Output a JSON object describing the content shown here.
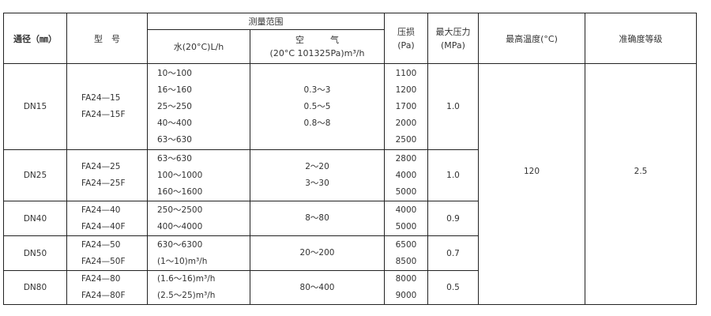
{
  "headers": {
    "diameter": "通径（㎜）",
    "model": "型　号",
    "range": "测量范围",
    "water": "水(20°C)L/h",
    "air_title": "空　　　气",
    "air_unit": "(20°C  101325Pa)m³/h",
    "pressure_loss": "压损",
    "pressure_loss_unit": "(Pa)",
    "max_pressure": "最大压力",
    "max_pressure_unit": "(MPa)",
    "max_temp": "最高温度(°C)",
    "accuracy": "准确度等级"
  },
  "rows": [
    {
      "dn": "DN15",
      "models": [
        "FA24—15",
        "FA24—15F"
      ],
      "water": [
        "10～100",
        "16～160",
        "25～250",
        "40～400",
        "63～630"
      ],
      "air": [
        "0.3～3",
        "0.5～5",
        "0.8～8"
      ],
      "loss": [
        "1100",
        "1200",
        "1700",
        "2000",
        "2500"
      ],
      "mpa": "1.0"
    },
    {
      "dn": "DN25",
      "models": [
        "FA24—25",
        "FA24—25F"
      ],
      "water": [
        "63～630",
        "100～1000",
        "160～1600"
      ],
      "air": [
        "2～20",
        "3～30"
      ],
      "loss": [
        "2800",
        "4000",
        "5000"
      ],
      "mpa": "1.0"
    },
    {
      "dn": "DN40",
      "models": [
        "FA24—40",
        "FA24—40F"
      ],
      "water": [
        "250～2500",
        "400～4000"
      ],
      "air": [
        "8～80"
      ],
      "loss": [
        "4000",
        "5000"
      ],
      "mpa": "0.9"
    },
    {
      "dn": "DN50",
      "models": [
        "FA24—50",
        "FA24—50F"
      ],
      "water": [
        "630～6300",
        "(1～10)m³/h"
      ],
      "air": [
        "20～200"
      ],
      "loss": [
        "6500",
        "8500"
      ],
      "mpa": "0.7"
    },
    {
      "dn": "DN80",
      "models": [
        "FA24—80",
        "FA24—80F"
      ],
      "water": [
        "(1.6～16)m³/h",
        "(2.5～25)m³/h"
      ],
      "air": [
        "80～400"
      ],
      "loss": [
        "8000",
        "9000"
      ],
      "mpa": "0.5"
    }
  ],
  "max_temp_value": "120",
  "accuracy_value": "2.5"
}
